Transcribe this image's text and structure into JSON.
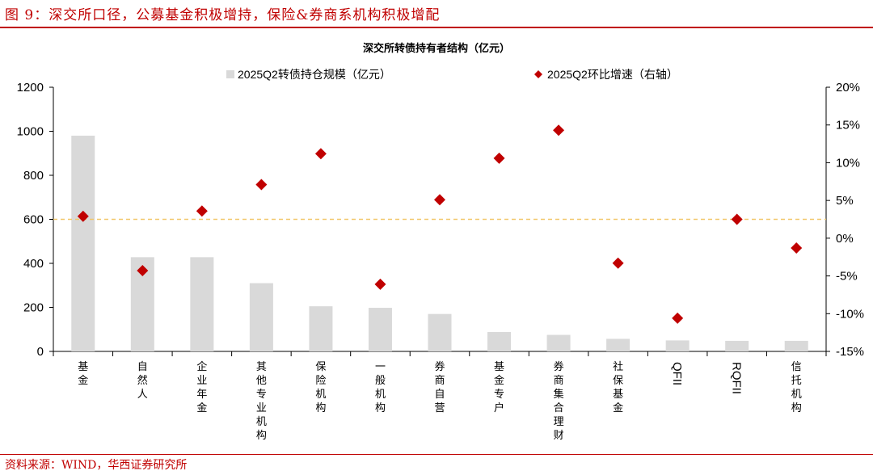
{
  "header": {
    "figure_title": "图 9：深交所口径，公募基金积极增持，保险&券商系机构积极增配"
  },
  "footer": {
    "source": "资料来源：WIND，华西证券研究所"
  },
  "colors": {
    "brand_red": "#c00000",
    "bar": "#d9d9d9",
    "marker": "#c00000",
    "reference_line": "#f2c76a"
  },
  "chart_data": {
    "type": "bar",
    "title": "深交所转债持有者结构（亿元）",
    "categories": [
      "基金",
      "自然人",
      "企业年金",
      "其他专业机构",
      "保险机构",
      "一般机构",
      "券商自营",
      "基金专户",
      "券商集合理财",
      "社保基金",
      "QFII",
      "RQFII",
      "信托机构"
    ],
    "series": [
      {
        "name": "2025Q2转债持仓规模（亿元）",
        "type": "bar",
        "axis": "left",
        "values": [
          980,
          428,
          428,
          310,
          205,
          198,
          170,
          88,
          75,
          57,
          50,
          48,
          48
        ]
      },
      {
        "name": "2025Q2环比增速（右轴）",
        "type": "scatter",
        "marker": "diamond",
        "axis": "right",
        "values": [
          2.9,
          -4.3,
          3.6,
          7.1,
          11.2,
          -6.1,
          5.1,
          10.6,
          14.3,
          -3.3,
          -10.6,
          2.5,
          -1.3
        ]
      }
    ],
    "y_left": {
      "min": 0,
      "max": 1200,
      "step": 200,
      "ticks": [
        "0",
        "200",
        "400",
        "600",
        "800",
        "1000",
        "1200"
      ]
    },
    "y_right": {
      "min": -15,
      "max": 20,
      "step": 5,
      "ticks": [
        "-15%",
        "-10%",
        "-5%",
        "0%",
        "5%",
        "10%",
        "15%",
        "20%"
      ]
    },
    "reference_line": {
      "axis": "left",
      "value": 600,
      "style": "dashed"
    },
    "legend": {
      "position": "top"
    },
    "grid": false
  }
}
